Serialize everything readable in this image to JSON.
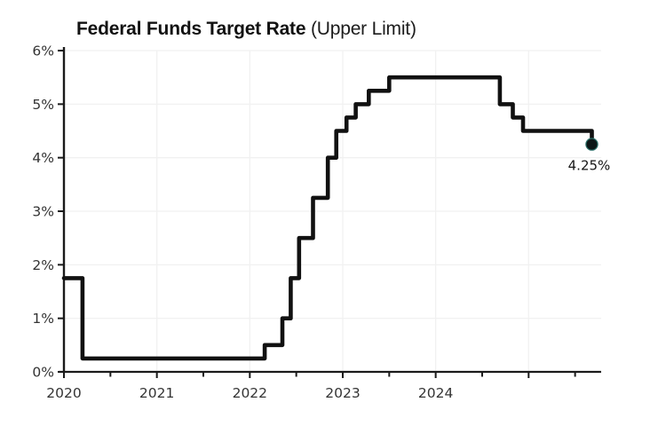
{
  "title": {
    "main": "Federal Funds Target Rate",
    "suffix": " (Upper Limit)"
  },
  "chart_data": {
    "type": "line",
    "subtype": "step-after",
    "title": "Federal Funds Target Rate (Upper Limit)",
    "x_unit": "year",
    "y_unit": "percent",
    "xlim": [
      2020.0,
      2025.78
    ],
    "ylim": [
      0,
      6
    ],
    "grid": true,
    "series": [
      {
        "name": "Federal Funds Target Rate (Upper Limit)",
        "points": [
          {
            "x": 2020.0,
            "y": 1.75
          },
          {
            "x": 2020.2,
            "y": 0.25
          },
          {
            "x": 2022.16,
            "y": 0.5
          },
          {
            "x": 2022.35,
            "y": 1.0
          },
          {
            "x": 2022.44,
            "y": 1.75
          },
          {
            "x": 2022.53,
            "y": 2.5
          },
          {
            "x": 2022.68,
            "y": 3.25
          },
          {
            "x": 2022.84,
            "y": 4.0
          },
          {
            "x": 2022.93,
            "y": 4.5
          },
          {
            "x": 2023.04,
            "y": 4.75
          },
          {
            "x": 2023.14,
            "y": 5.0
          },
          {
            "x": 2023.28,
            "y": 5.25
          },
          {
            "x": 2023.5,
            "y": 5.5
          },
          {
            "x": 2024.69,
            "y": 5.0
          },
          {
            "x": 2024.83,
            "y": 4.75
          },
          {
            "x": 2024.94,
            "y": 4.5
          },
          {
            "x": 2025.68,
            "y": 4.25
          }
        ]
      }
    ],
    "x_axis": {
      "ticks": [
        2020,
        2020.5,
        2021,
        2021.5,
        2022,
        2022.5,
        2023,
        2023.5,
        2024,
        2024.5,
        2025,
        2025.5
      ],
      "labels": {
        "2020": "2020",
        "2021": "2021",
        "2022": "2022",
        "2023": "2023",
        "2024": "2024"
      },
      "grid_ticks": [
        2021,
        2022,
        2023,
        2024,
        2025
      ]
    },
    "y_axis": {
      "ticks": [
        0,
        1,
        2,
        3,
        4,
        5,
        6
      ],
      "labels": {
        "0": "0%",
        "1": "1%",
        "2": "2%",
        "3": "3%",
        "4": "4%",
        "5": "5%",
        "6": "6%"
      },
      "grid_ticks": [
        1,
        2,
        3,
        4,
        5,
        6
      ]
    },
    "end_marker": {
      "x": 2025.68,
      "y": 4.25,
      "label": "4.25%"
    },
    "colors": {
      "line": "#111111",
      "dot_fill": "#0d1717",
      "dot_ring": "#2a6f68",
      "axis": "#1b1b1b",
      "grid": "#f1f1f1",
      "tick_label": "#343434",
      "annotation": "#161616",
      "background": "#ffffff"
    }
  }
}
